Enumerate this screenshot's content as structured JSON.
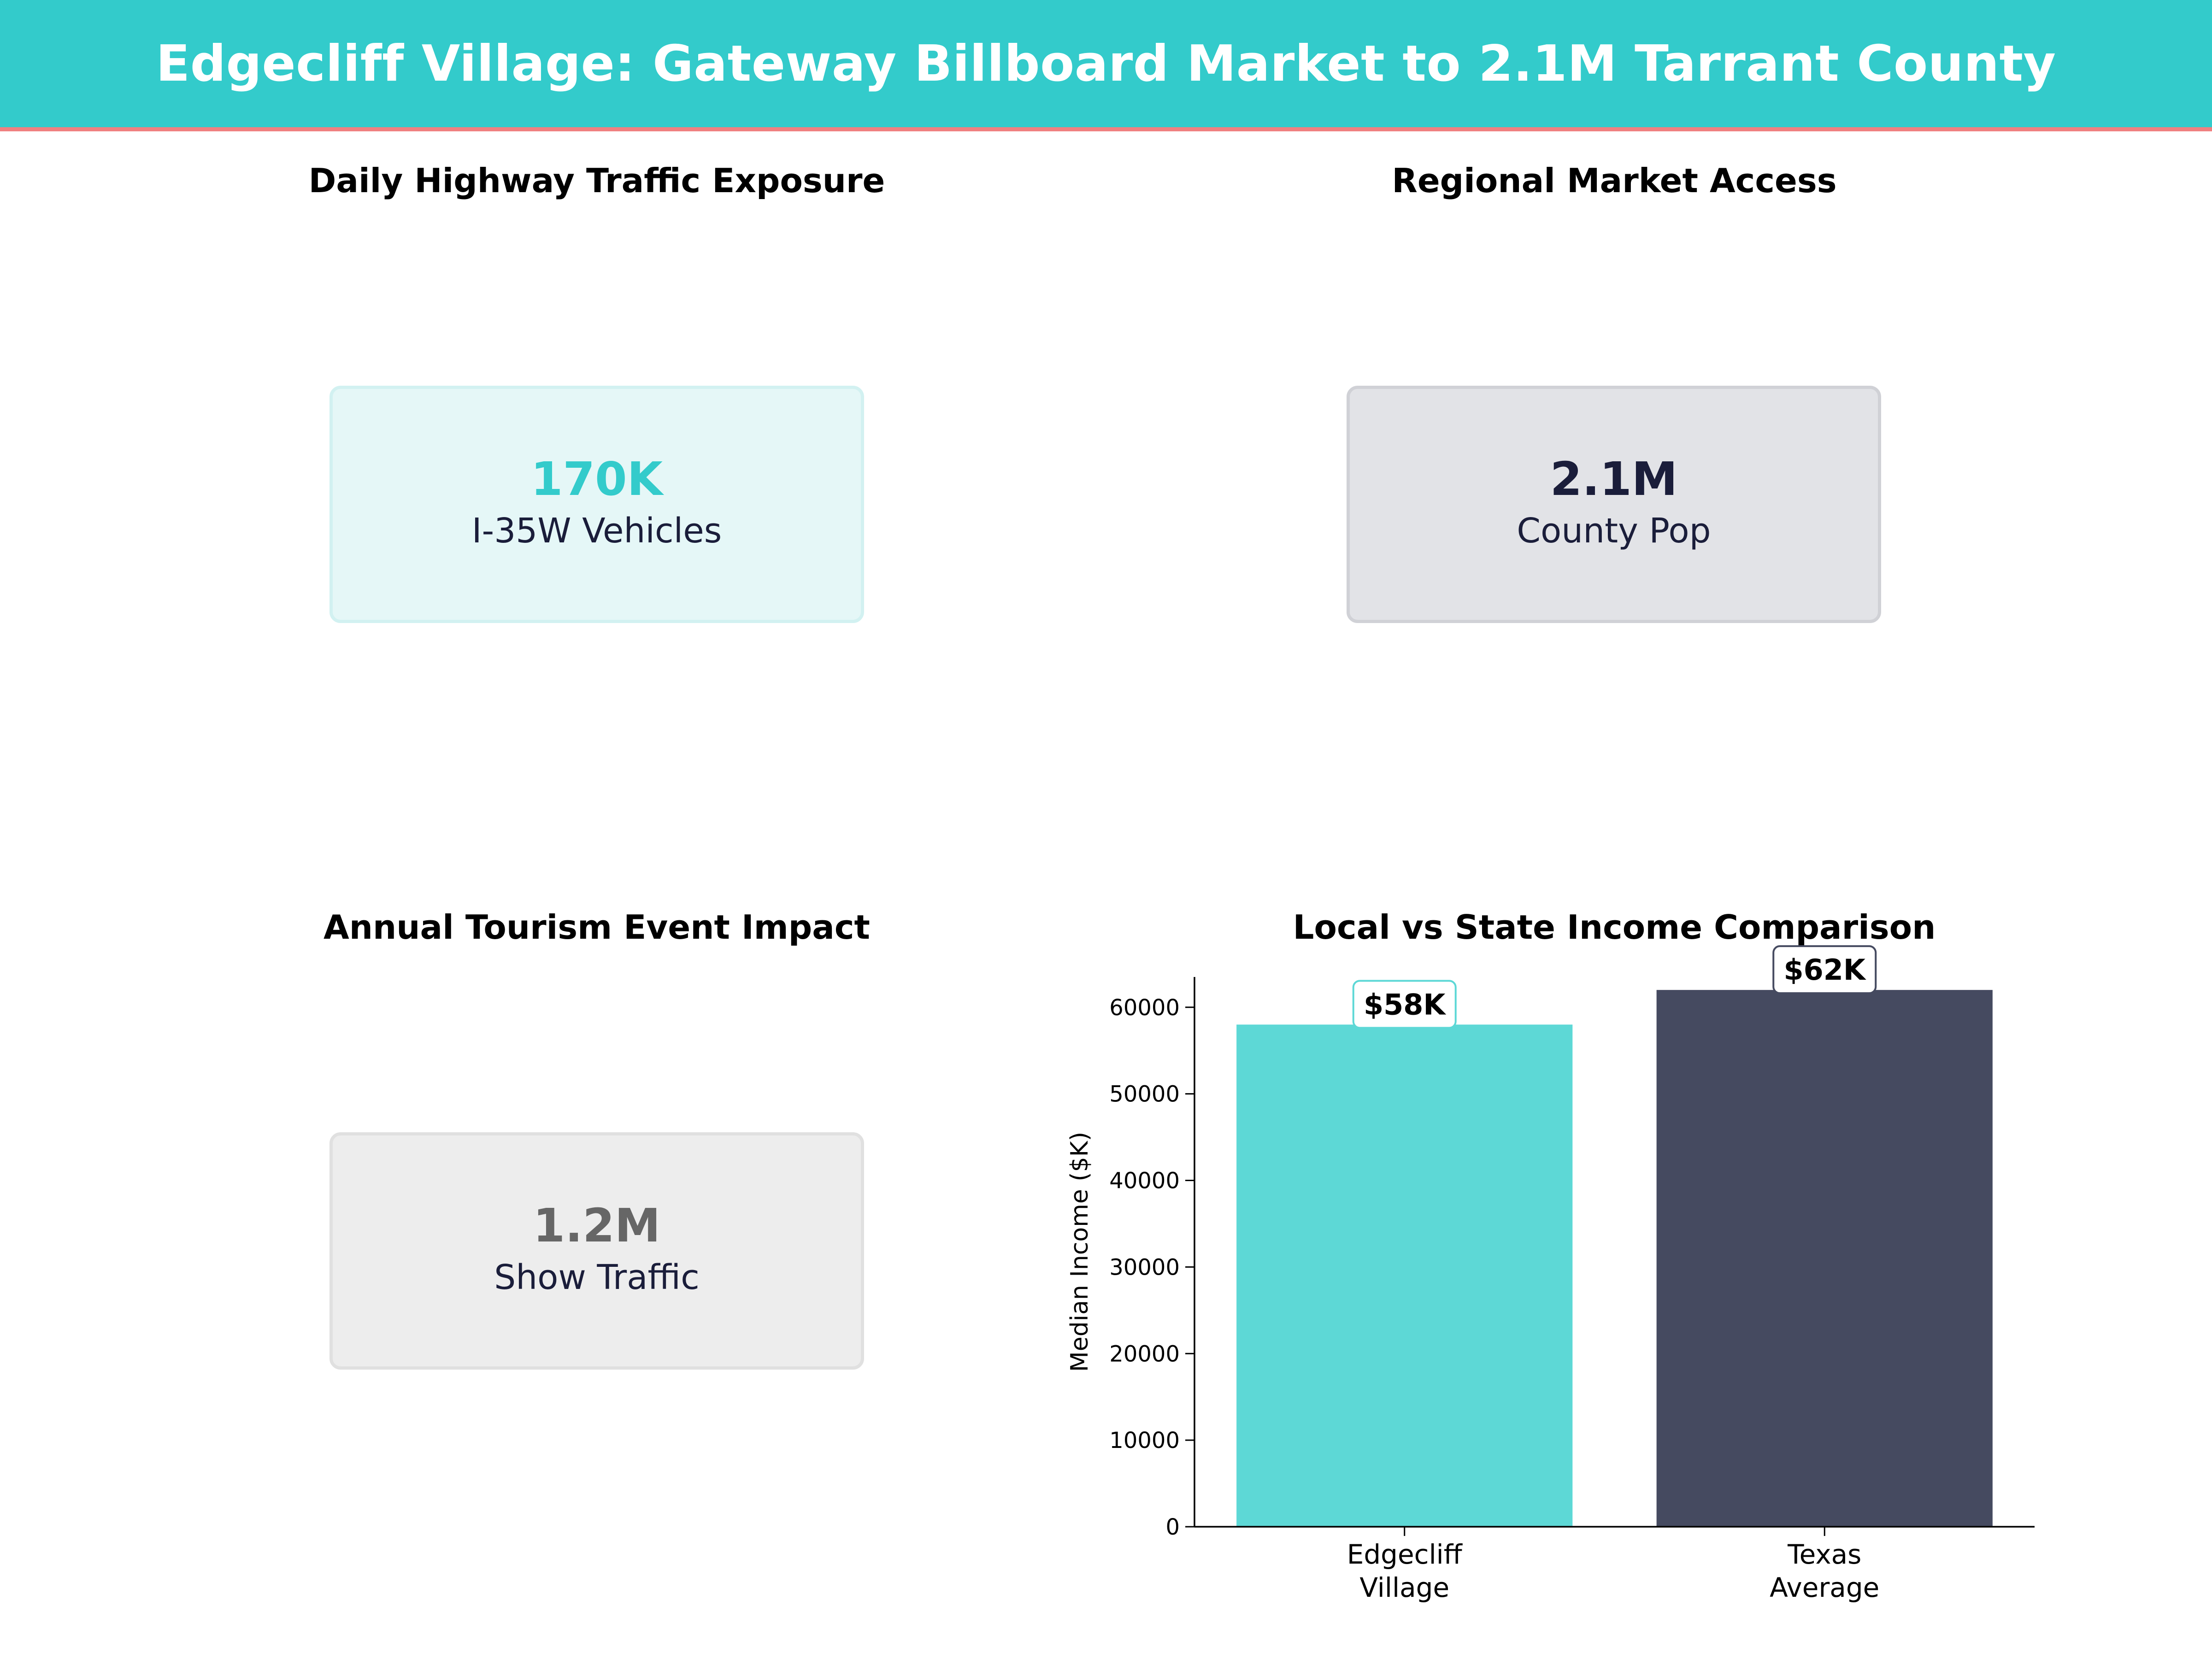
{
  "header": {
    "title": "Edgecliff Village: Gateway Billboard Market to 2.1M Tarrant County",
    "background": "#33cbcb",
    "accent_line": "#f08080"
  },
  "panels": {
    "traffic": {
      "title": "Daily Highway Traffic Exposure",
      "value": "170K",
      "label": "I-35W Vehicles",
      "value_color": "#33cbcb"
    },
    "market": {
      "title": "Regional Market Access",
      "value": "2.1M",
      "label": "County Pop",
      "value_color": "#1a1d3a"
    },
    "tourism": {
      "title": "Annual Tourism Event Impact",
      "value": "1.2M",
      "label": "Show Traffic",
      "value_color": "#666666"
    }
  },
  "chart_data": {
    "type": "bar",
    "title": "Local vs State Income Comparison",
    "categories": [
      "Edgecliff\nVillage",
      "Texas\nAverage"
    ],
    "values": [
      58000,
      62000
    ],
    "data_labels": [
      "$58K",
      "$62K"
    ],
    "colors": [
      "#5dd8d6",
      "#454a60"
    ],
    "label_border_colors": [
      "#5dd8d6",
      "#454a60"
    ],
    "xlabel": "",
    "ylabel": "Median Income ($K)",
    "ylim": [
      0,
      63500
    ],
    "yticks": [
      0,
      10000,
      20000,
      30000,
      40000,
      50000,
      60000
    ],
    "grid": false
  }
}
